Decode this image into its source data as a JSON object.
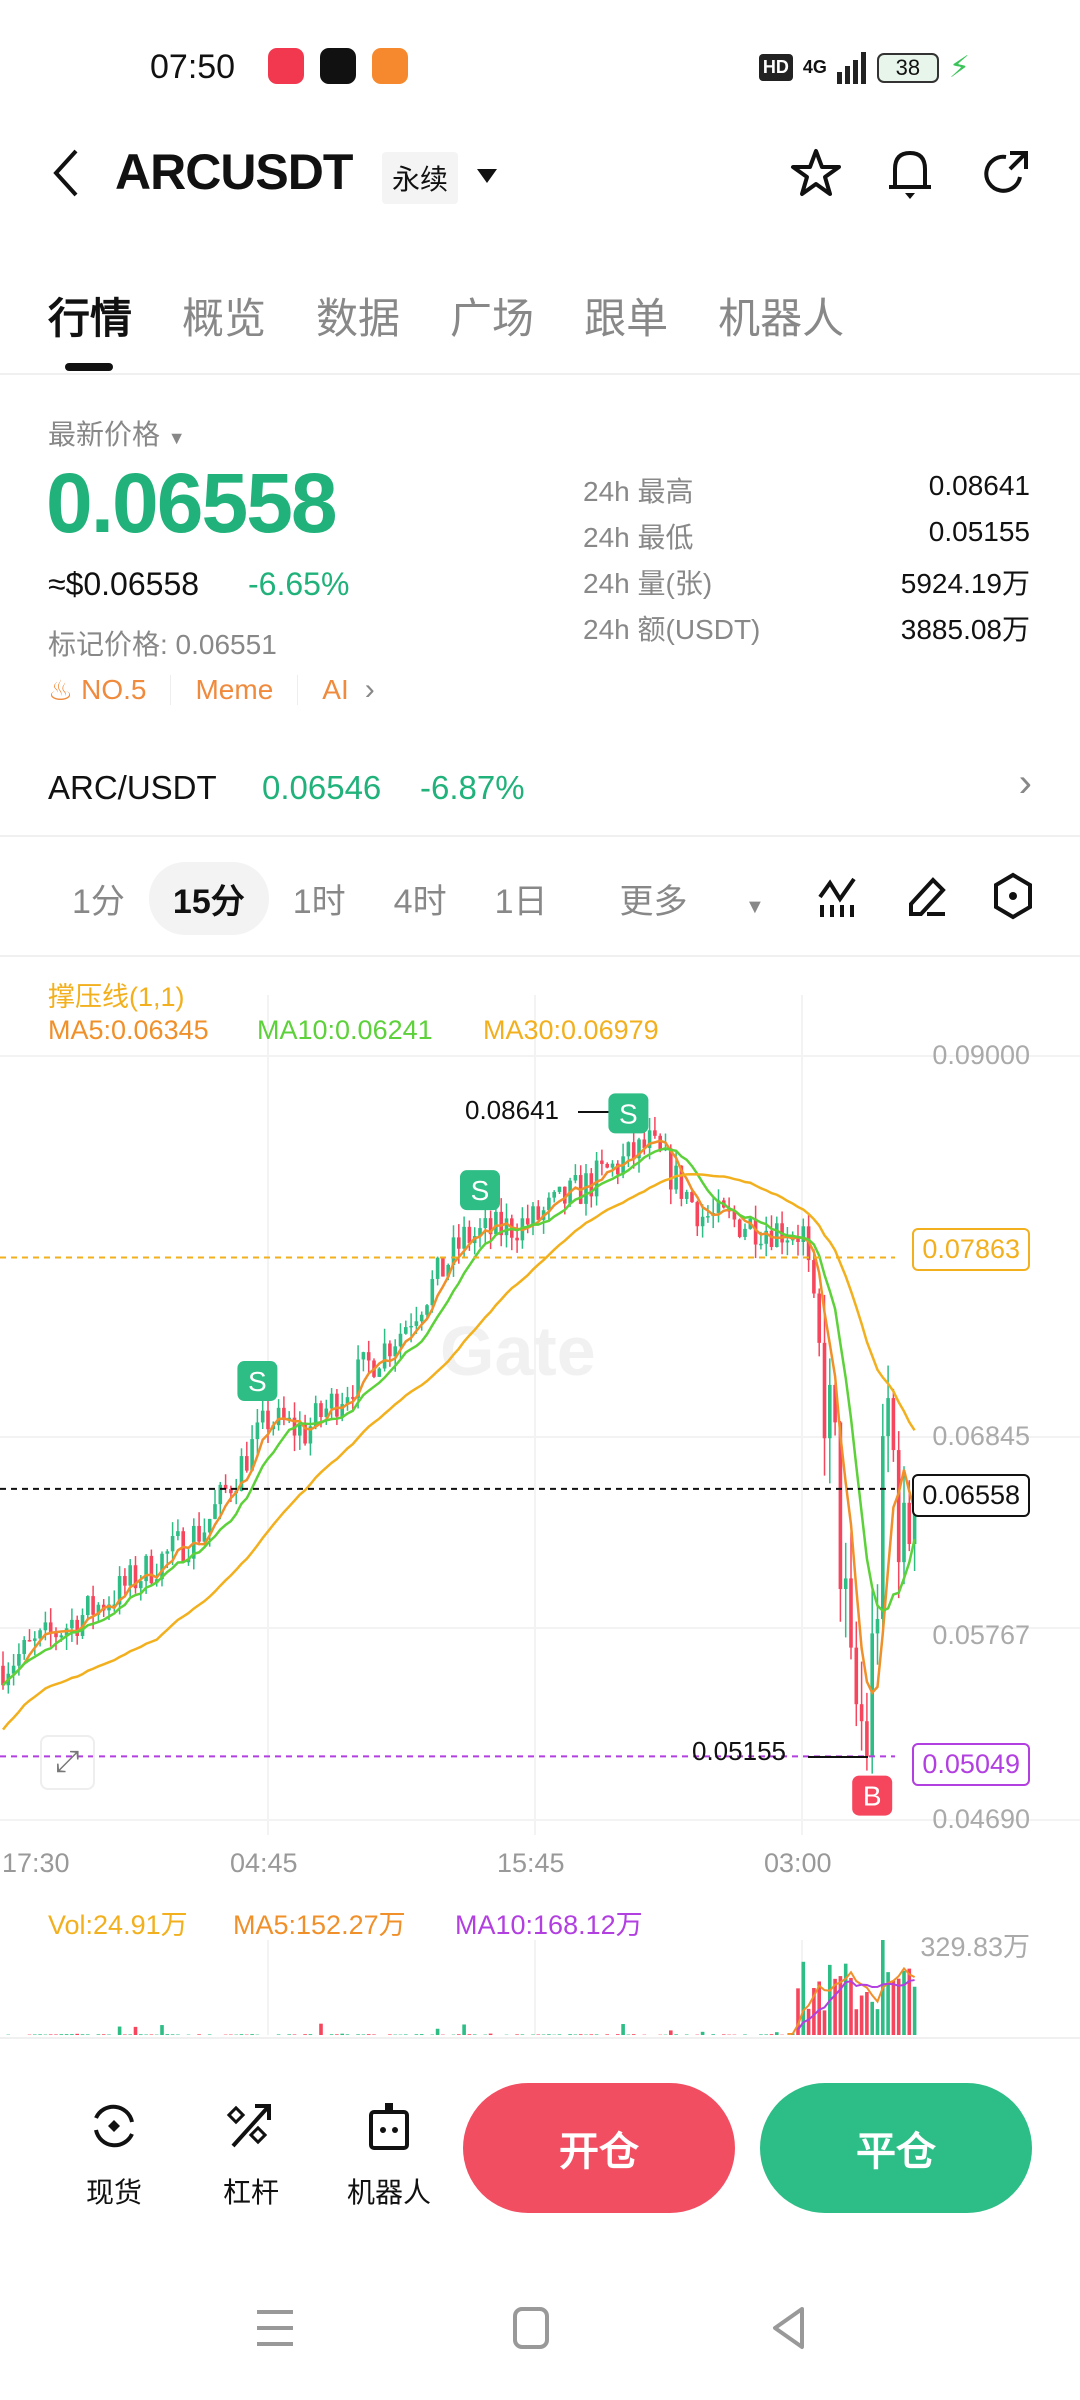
{
  "status_bar": {
    "time": "07:50",
    "network": "4G",
    "hd": "HD",
    "battery": "38"
  },
  "header": {
    "symbol": "ARCUSDT",
    "contract_type": "永续"
  },
  "tabs": [
    "行情",
    "概览",
    "数据",
    "广场",
    "跟单",
    "机器人"
  ],
  "price": {
    "label": "最新价格",
    "last": "0.06558",
    "usd": "≈$0.06558",
    "change": "-6.65%",
    "mark": "标记价格: 0.06551",
    "tags": [
      "NO.5",
      "Meme",
      "AI"
    ]
  },
  "stats": [
    {
      "label": "24h  最高",
      "value": "0.08641"
    },
    {
      "label": "24h  最低",
      "value": "0.05155"
    },
    {
      "label": "24h  量(张)",
      "value": "5924.19万"
    },
    {
      "label": "24h  额(USDT)",
      "value": "3885.08万"
    }
  ],
  "spot": {
    "pair": "ARC/USDT",
    "price": "0.06546",
    "change": "-6.87%"
  },
  "timeframes": [
    "1分",
    "15分",
    "1时",
    "4时",
    "1日",
    "更多"
  ],
  "selected_timeframe": "15分",
  "colors": {
    "up": "#2EBD85",
    "down": "#F6465D",
    "ma5": "#F0902A",
    "ma10": "#5DD13A",
    "ma30": "#F2B01E",
    "accent_green": "#20b27a",
    "tag": "#F08A3C",
    "vol_ma10": "#B23FE0"
  },
  "chart_data": {
    "type": "candlestick",
    "indicator": "撑压线(1,1)",
    "ma_legend": {
      "ma5": "MA5:0.06345",
      "ma10": "MA10:0.06241",
      "ma30": "MA30:0.06979"
    },
    "y_ticks": [
      "0.09000",
      "0.06845",
      "0.05767",
      "0.04690"
    ],
    "ylim": [
      0.0469,
      0.09
    ],
    "x_ticks": [
      "17:30",
      "04:45",
      "15:45",
      "03:00"
    ],
    "resistance": "0.07863",
    "support": "0.05049",
    "last_price": "0.06558",
    "high_label": "0.08641",
    "low_label": "0.05155",
    "close_waypoints": [
      [
        0,
        0.0556
      ],
      [
        19,
        0.0592
      ],
      [
        38,
        0.0634
      ],
      [
        50,
        0.0695
      ],
      [
        57,
        0.0688
      ],
      [
        75,
        0.0745
      ],
      [
        87,
        0.0797
      ],
      [
        100,
        0.0807
      ],
      [
        113,
        0.0833
      ],
      [
        122,
        0.085
      ],
      [
        132,
        0.081
      ],
      [
        145,
        0.0803
      ],
      [
        151,
        0.08
      ],
      [
        157,
        0.0667
      ],
      [
        160,
        0.0537
      ],
      [
        163,
        0.0514
      ],
      [
        165,
        0.0602
      ],
      [
        167,
        0.0699
      ],
      [
        170,
        0.0618
      ],
      [
        172,
        0.06558
      ]
    ],
    "signals": [
      {
        "type": "S",
        "bar": 48
      },
      {
        "type": "S",
        "bar": 90
      },
      {
        "type": "S",
        "bar": 118
      },
      {
        "type": "B",
        "bar": 164
      }
    ],
    "volume": {
      "legend": "Vol:24.91万",
      "ma5": "MA5:152.27万",
      "ma10": "MA10:168.12万",
      "max_label": "329.83万"
    }
  },
  "bottom": {
    "items": [
      "现货",
      "杠杆",
      "机器人"
    ],
    "open": "开仓",
    "close": "平仓"
  }
}
